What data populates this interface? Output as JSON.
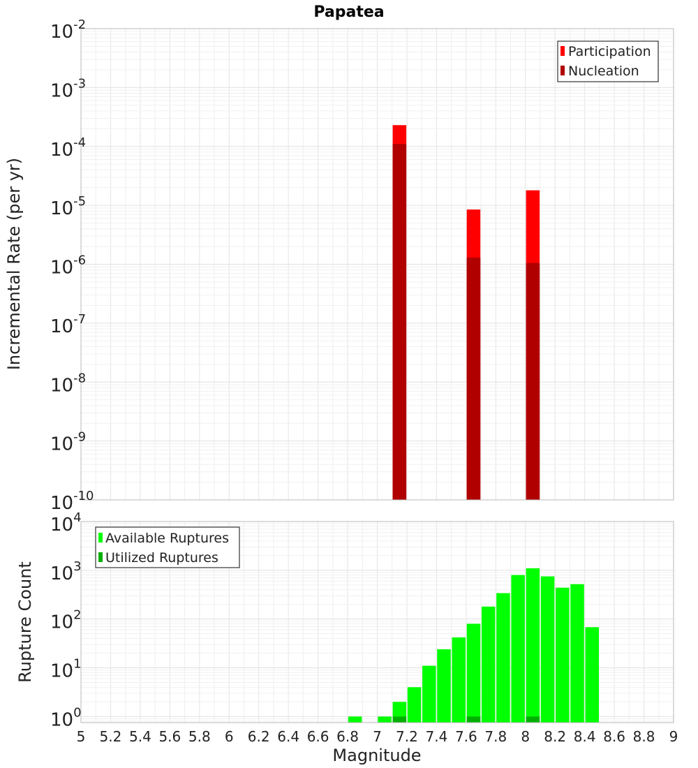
{
  "chart_data": [
    {
      "type": "bar",
      "title": "Papatea",
      "xlabel": "",
      "ylabel": "Incremental Rate (per yr)",
      "yscale": "log",
      "ylim": [
        1e-10,
        0.01
      ],
      "xlim": [
        5,
        9
      ],
      "ytick_exponents": [
        "-10",
        "-9",
        "-8",
        "-7",
        "-6",
        "-5",
        "-4",
        "-3",
        "-2"
      ],
      "ytick_base": "10",
      "grid": true,
      "legend_position": "top-right",
      "series": [
        {
          "name": "Participation",
          "color": "#ff0000",
          "x": [
            7.15,
            7.65,
            8.05
          ],
          "values": [
            0.00023,
            8.5e-06,
            1.8e-05
          ]
        },
        {
          "name": "Nucleation",
          "color": "#b00000",
          "x": [
            7.15,
            7.65,
            8.05
          ],
          "values": [
            0.00011,
            1.3e-06,
            1.05e-06
          ]
        }
      ]
    },
    {
      "type": "bar",
      "title": "",
      "xlabel": "Magnitude",
      "ylabel": "Rupture Count",
      "yscale": "log",
      "ylim": [
        0.75,
        10000
      ],
      "xlim": [
        5,
        9
      ],
      "ytick_exponents": [
        "0",
        "1",
        "2",
        "3",
        "4"
      ],
      "ytick_base": "10",
      "xticks": [
        "5",
        "5.2",
        "5.4",
        "5.6",
        "5.8",
        "6",
        "6.2",
        "6.4",
        "6.6",
        "6.8",
        "7",
        "7.2",
        "7.4",
        "7.6",
        "7.8",
        "8",
        "8.2",
        "8.4",
        "8.6",
        "8.8",
        "9"
      ],
      "grid": true,
      "legend_position": "top-left",
      "series": [
        {
          "name": "Available Ruptures",
          "color": "#00ff00",
          "x": [
            6.85,
            7.05,
            7.15,
            7.25,
            7.35,
            7.45,
            7.55,
            7.65,
            7.75,
            7.85,
            7.95,
            8.05,
            8.15,
            8.25,
            8.35,
            8.45
          ],
          "values": [
            1,
            1,
            2,
            4,
            11,
            24,
            42,
            80,
            180,
            340,
            800,
            1100,
            750,
            440,
            520,
            68
          ]
        },
        {
          "name": "Utilized Ruptures",
          "color": "#00b000",
          "x": [
            7.15,
            7.65,
            8.05
          ],
          "values": [
            1,
            1,
            1
          ]
        }
      ]
    }
  ]
}
